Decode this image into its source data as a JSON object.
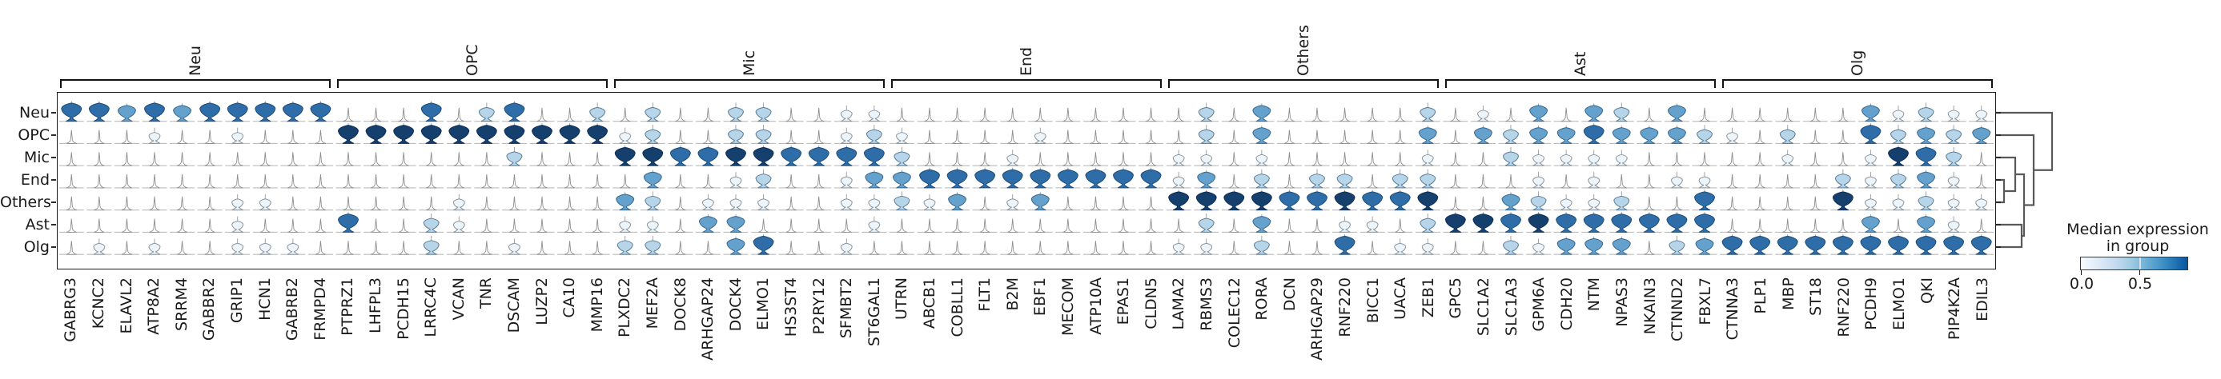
{
  "chart_data": {
    "type": "stacked_violin",
    "description": "Stacked violin plot of marker gene expression per cell-type group, with row dendrogram and median-expression colorbar",
    "rows": [
      "Neu",
      "OPC",
      "Mic",
      "End",
      "Others",
      "Ast",
      "Olg"
    ],
    "gene_groups": [
      {
        "label": "Neu",
        "genes": [
          "GABRG3",
          "KCNC2",
          "ELAVL2",
          "ATP8A2",
          "SRRM4",
          "GABBR2",
          "GRIP1",
          "HCN1",
          "GABRB2",
          "FRMPD4"
        ]
      },
      {
        "label": "OPC",
        "genes": [
          "PTPRZ1",
          "LHFPL3",
          "PCDH15",
          "LRRC4C",
          "VCAN",
          "TNR",
          "DSCAM",
          "LUZP2",
          "CA10",
          "MMP16"
        ]
      },
      {
        "label": "Mic",
        "genes": [
          "PLXDC2",
          "MEF2A",
          "DOCK8",
          "ARHGAP24",
          "DOCK4",
          "ELMO1",
          "HS3ST4",
          "P2RY12",
          "SFMBT2",
          "ST6GAL1"
        ]
      },
      {
        "label": "End",
        "genes": [
          "UTRN",
          "ABCB1",
          "COBLL1",
          "FLT1",
          "B2M",
          "EBF1",
          "MECOM",
          "ATP10A",
          "EPAS1",
          "CLDN5"
        ]
      },
      {
        "label": "Others",
        "genes": [
          "LAMA2",
          "RBMS3",
          "COLEC12",
          "RORA",
          "DCN",
          "ARHGAP29",
          "RNF220",
          "BICC1",
          "UACA",
          "ZEB1"
        ]
      },
      {
        "label": "Ast",
        "genes": [
          "GPC5",
          "SLC1A2",
          "SLC1A3",
          "GPM6A",
          "CDH20",
          "NTM",
          "NPAS3",
          "NKAIN3",
          "CTNND2",
          "FBXL7"
        ]
      },
      {
        "label": "Olg",
        "genes": [
          "CTNNA3",
          "PLP1",
          "MBP",
          "ST18",
          "RNF220",
          "PCDH9",
          "ELMO1",
          "QKI",
          "PIP4K2A",
          "EDIL3"
        ]
      }
    ],
    "expression_levels": {
      "note": "One digit per gene column for each cell-type row; 0=tiny unexpressed spike ... 5=large dark-navy violin",
      "level_values": {
        "0": 0.0,
        "1": 0.08,
        "2": 0.25,
        "3": 0.45,
        "4": 0.65,
        "5": 0.85
      },
      "matrix": {
        "Neu": "4434344444000402400202002200110000000000020300000201030320300000031211",
        "OPC": "0001001000555555555512002200121000010000020300000303233433321020042323",
        "Mic": "0000000000000000200055445544442000100000110100000100211110000010015420",
        "End": "0000000000000000000003001200133444444444130202202200010100110000212310",
        "Others": "0000001100000010000032011100112130130000555544544500321120040000511211",
        "Ast": "0000001000400210000011033000010000000000020300110255454444440000030310",
        "Olg": "0101001110000200100022003400100000000000110200401100213330234444444444"
      }
    },
    "level_colors": {
      "0": "#ffffff",
      "1": "#edf4fa",
      "2": "#b7d5e9",
      "3": "#64a1cc",
      "4": "#2e6da8",
      "5": "#153f6d"
    },
    "colorbar": {
      "title_line1": "Median expression",
      "title_line2": "in group",
      "tick_labels": [
        "0.0",
        "0.5"
      ],
      "cmap": "Blues",
      "cmap_low": "#f7fbff",
      "cmap_high": "#0b559f"
    },
    "dendrogram": {
      "leaves": [
        "Neu",
        "OPC",
        "Mic",
        "End",
        "Others",
        "Ast",
        "Olg"
      ],
      "merges": [
        {
          "a": "End",
          "b": "Others",
          "d": 10
        },
        {
          "a": "Mic",
          "b": "merge0",
          "d": 24
        },
        {
          "a": "Ast",
          "b": "Olg",
          "d": 32
        },
        {
          "a": "merge1",
          "b": "merge2",
          "d": 35
        },
        {
          "a": "OPC",
          "b": "merge3",
          "d": 47
        },
        {
          "a": "Neu",
          "b": "merge4",
          "d": 70
        }
      ]
    }
  }
}
